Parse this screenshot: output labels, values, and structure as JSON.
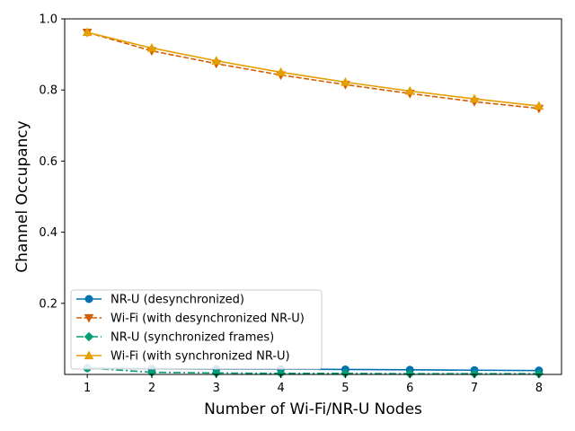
{
  "chart_data": {
    "type": "line",
    "title": "",
    "xlabel": "Number of Wi-Fi/NR-U Nodes",
    "ylabel": "Channel Occupancy",
    "x": [
      1,
      2,
      3,
      4,
      5,
      6,
      7,
      8
    ],
    "xlim": [
      0.65,
      8.35
    ],
    "ylim": [
      0.0,
      1.0
    ],
    "x_ticks": [
      "1",
      "2",
      "3",
      "4",
      "5",
      "6",
      "7",
      "8"
    ],
    "y_ticks": [
      {
        "value": 0.2,
        "label": "0.2"
      },
      {
        "value": 0.4,
        "label": "0.4"
      },
      {
        "value": 0.6,
        "label": "0.6"
      },
      {
        "value": 0.8,
        "label": "0.8"
      },
      {
        "value": 1.0,
        "label": "1.0"
      }
    ],
    "grid": false,
    "legend_position": "lower-left",
    "series": [
      {
        "name": "NR-U (desynchronized)",
        "color": "#0072b2",
        "line_style": "solid",
        "marker": "circle",
        "values": [
          0.018,
          0.016,
          0.015,
          0.015,
          0.014,
          0.013,
          0.012,
          0.011
        ]
      },
      {
        "name": "Wi-Fi (with desynchronized NR-U)",
        "color": "#d55e00",
        "line_style": "dashed",
        "marker": "triangle-down",
        "values": [
          0.962,
          0.91,
          0.874,
          0.842,
          0.815,
          0.79,
          0.767,
          0.748
        ]
      },
      {
        "name": "NR-U (synchronized frames)",
        "color": "#009e73",
        "line_style": "dashdot",
        "marker": "diamond",
        "values": [
          0.018,
          0.006,
          0.004,
          0.003,
          0.003,
          0.002,
          0.002,
          0.002
        ]
      },
      {
        "name": "Wi-Fi (with synchronized NR-U)",
        "color": "#e69f00",
        "line_style": "solid",
        "marker": "triangle-up",
        "values": [
          0.962,
          0.918,
          0.882,
          0.85,
          0.822,
          0.797,
          0.775,
          0.755
        ]
      }
    ]
  }
}
